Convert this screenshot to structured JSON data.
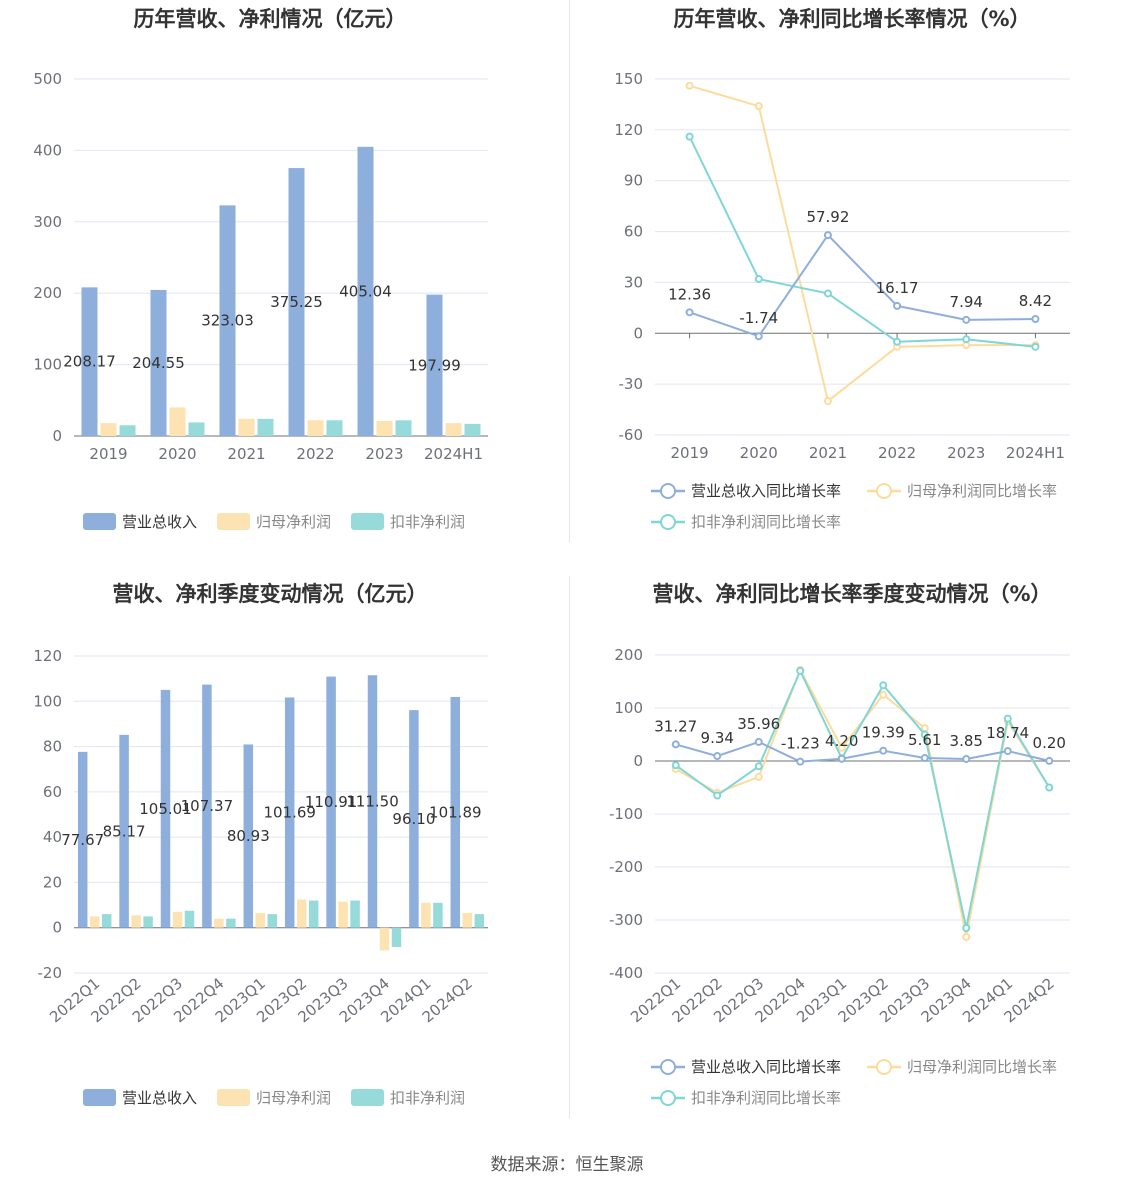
{
  "colors": {
    "revenue": "#8eaedb",
    "net_profit": "#fde2b2",
    "deducted_profit": "#96dada",
    "revenue_line": "#8eaedb",
    "net_line": "#fddb9a",
    "deducted_line": "#7fd6d6"
  },
  "source": "数据来源：恒生聚源",
  "chart_data": [
    {
      "id": "annual-bar",
      "type": "bar",
      "title": "历年营收、净利情况（亿元）",
      "categories": [
        "2019",
        "2020",
        "2021",
        "2022",
        "2023",
        "2024H1"
      ],
      "ylim": [
        0,
        500
      ],
      "yticks": [
        "0",
        "100",
        "200",
        "300",
        "400",
        "500"
      ],
      "series": [
        {
          "name": "营业总收入",
          "values": [
            208.17,
            204.55,
            323.03,
            375.25,
            405.04,
            197.99
          ],
          "labels": [
            "208.17",
            "204.55",
            "323.03",
            "375.25",
            "405.04",
            "197.99"
          ]
        },
        {
          "name": "归母净利润",
          "values": [
            18,
            40,
            24,
            22,
            21,
            18
          ]
        },
        {
          "name": "扣非净利润",
          "values": [
            15,
            19,
            24,
            22,
            22,
            17
          ]
        }
      ],
      "legend": [
        "营业总收入",
        "归母净利润",
        "扣非净利润"
      ]
    },
    {
      "id": "annual-line",
      "type": "line",
      "title": "历年营收、净利同比增长率情况（%）",
      "categories": [
        "2019",
        "2020",
        "2021",
        "2022",
        "2023",
        "2024H1"
      ],
      "ylim": [
        -60,
        150
      ],
      "yticks": [
        "-60",
        "-30",
        "0",
        "30",
        "60",
        "90",
        "120",
        "150"
      ],
      "series": [
        {
          "name": "营业总收入同比增长率",
          "values": [
            12.36,
            -1.74,
            57.92,
            16.17,
            7.94,
            8.42
          ],
          "labels": [
            "12.36",
            "-1.74",
            "57.92",
            "16.17",
            "7.94",
            "8.42"
          ]
        },
        {
          "name": "归母净利润同比增长率",
          "values": [
            146,
            134,
            -40,
            -8,
            -7,
            -7
          ]
        },
        {
          "name": "扣非净利润同比增长率",
          "values": [
            116,
            32,
            23.5,
            -5,
            -3.5,
            -8
          ]
        }
      ],
      "legend": [
        "营业总收入同比增长率",
        "归母净利润同比增长率",
        "扣非净利润同比增长率"
      ]
    },
    {
      "id": "quarter-bar",
      "type": "bar",
      "title": "营收、净利季度变动情况（亿元）",
      "categories": [
        "2022Q1",
        "2022Q2",
        "2022Q3",
        "2022Q4",
        "2023Q1",
        "2023Q2",
        "2023Q3",
        "2023Q4",
        "2024Q1",
        "2024Q2"
      ],
      "ylim": [
        -20,
        120
      ],
      "yticks": [
        "-20",
        "0",
        "20",
        "40",
        "60",
        "80",
        "100",
        "120"
      ],
      "series": [
        {
          "name": "营业总收入",
          "values": [
            77.67,
            85.17,
            105.01,
            107.37,
            80.93,
            101.69,
            110.91,
            111.5,
            96.1,
            101.89
          ],
          "labels": [
            "77.67",
            "85.17",
            "105.01",
            "107.37",
            "80.93",
            "101.69",
            "110.91",
            "111.50",
            "96.10",
            "101.89"
          ]
        },
        {
          "name": "归母净利润",
          "values": [
            5,
            5.5,
            7,
            4,
            6.5,
            12.5,
            11.5,
            -10,
            11,
            6.5
          ]
        },
        {
          "name": "扣非净利润",
          "values": [
            6,
            5,
            7.5,
            4,
            6,
            12,
            12,
            -8.5,
            11,
            6
          ]
        }
      ],
      "legend": [
        "营业总收入",
        "归母净利润",
        "扣非净利润"
      ]
    },
    {
      "id": "quarter-line",
      "type": "line",
      "title": "营收、净利同比增长率季度变动情况（%）",
      "categories": [
        "2022Q1",
        "2022Q2",
        "2022Q3",
        "2022Q4",
        "2023Q1",
        "2023Q2",
        "2023Q3",
        "2023Q4",
        "2024Q1",
        "2024Q2"
      ],
      "ylim": [
        -400,
        200
      ],
      "yticks": [
        "-400",
        "-300",
        "-200",
        "-100",
        "0",
        "100",
        "200"
      ],
      "series": [
        {
          "name": "营业总收入同比增长率",
          "values": [
            31.27,
            9.34,
            35.96,
            -1.23,
            4.2,
            19.39,
            5.61,
            3.85,
            18.74,
            0.2
          ],
          "labels": [
            "31.27",
            "9.34",
            "35.96",
            "-1.23",
            "4.20",
            "19.39",
            "5.61",
            "3.85",
            "18.74",
            "0.20"
          ]
        },
        {
          "name": "归母净利润同比增长率",
          "values": [
            -15,
            -60,
            -30,
            172,
            25,
            125,
            62,
            -332,
            75,
            -50
          ]
        },
        {
          "name": "扣非净利润同比增长率",
          "values": [
            -8,
            -65,
            -10,
            170,
            5,
            143,
            50,
            -315,
            80,
            -50
          ]
        }
      ],
      "legend": [
        "营业总收入同比增长率",
        "归母净利润同比增长率",
        "扣非净利润同比增长率"
      ]
    }
  ]
}
